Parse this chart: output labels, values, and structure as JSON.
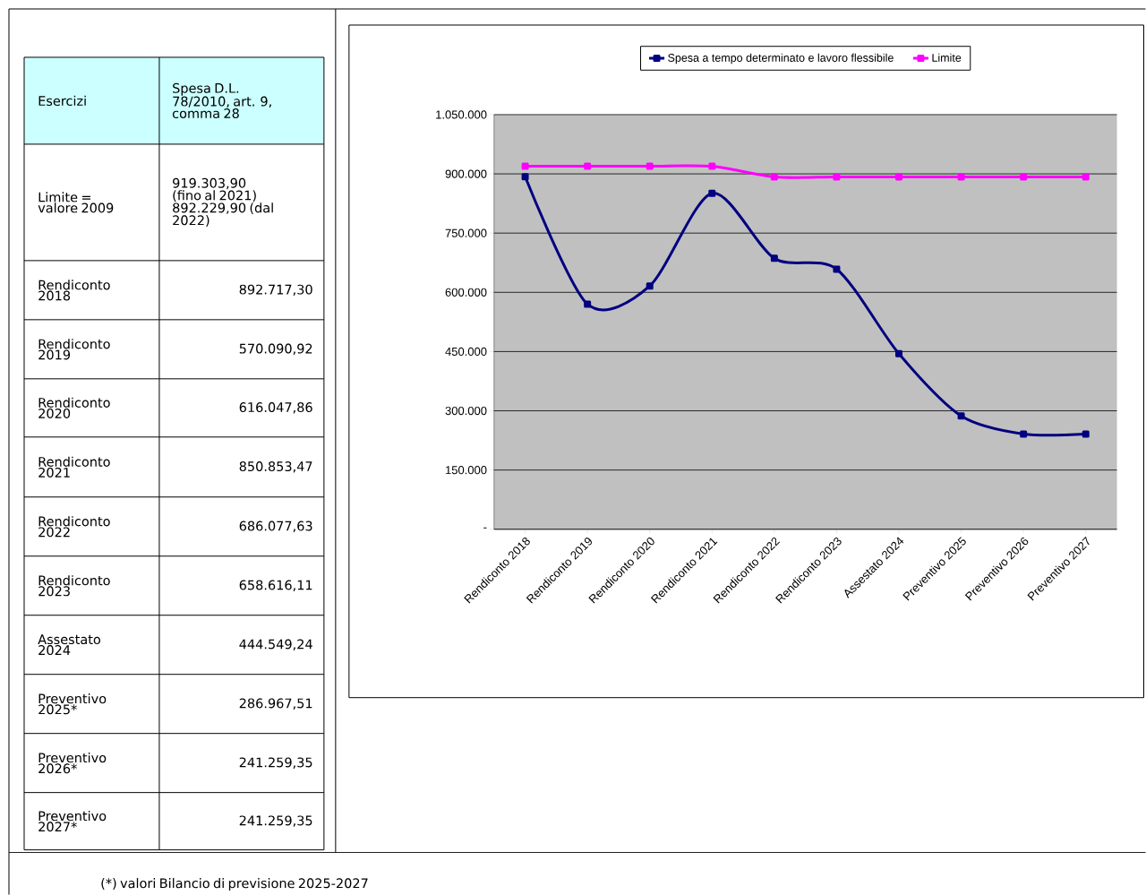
{
  "chart_data": {
    "type": "line",
    "categories": [
      "Rendiconto 2018",
      "Rendiconto 2019",
      "Rendiconto 2020",
      "Rendiconto 2021",
      "Rendiconto 2022",
      "Rendiconto 2023",
      "Assestato 2024",
      "Preventivo 2025",
      "Preventivo 2026",
      "Preventivo 2027"
    ],
    "series": [
      {
        "name": "Spesa a tempo determinato e lavoro flessibile",
        "color": "#000080",
        "values": [
          892717.3,
          570090.92,
          616047.86,
          850853.47,
          686077.63,
          658616.11,
          444549.24,
          286967.51,
          241259.35,
          241259.35
        ]
      },
      {
        "name": "Limite",
        "color": "#ff00ff",
        "values": [
          919303.9,
          919303.9,
          919303.9,
          919303.9,
          892229.9,
          892229.9,
          892229.9,
          892229.9,
          892229.9,
          892229.9
        ]
      }
    ],
    "ylim": [
      0,
      1050000
    ],
    "yticks": [
      {
        "value": 0,
        "label": "-"
      },
      {
        "value": 150000,
        "label": "150.000"
      },
      {
        "value": 300000,
        "label": "300.000"
      },
      {
        "value": 450000,
        "label": "450.000"
      },
      {
        "value": 600000,
        "label": "600.000"
      },
      {
        "value": 750000,
        "label": "750.000"
      },
      {
        "value": 900000,
        "label": "900.000"
      },
      {
        "value": 1050000,
        "label": "1.050.000"
      }
    ],
    "grid": "y",
    "legend": "top",
    "marker": "square",
    "line_style": "solid",
    "annotations": [
      "Esercizi",
      "Spesa D.L. 78/2010, art. 9, comma 28",
      "Limite = valore 2009",
      "919.303,90 (fino al 2021) 892.229,90 (dal 2022)",
      "Rendiconto 2018",
      "Rendiconto 2019",
      "Rendiconto 2020",
      "Rendiconto 2021",
      "Rendiconto 2022",
      "Rendiconto 2023",
      "Assestato 2024",
      "Preventivo 2025*",
      "Preventivo 2026*",
      "Preventivo 2027*",
      "(*) valori Bilancio di previsione 2025-2027",
      "892.717,30",
      "570.090,92",
      "616.047,86",
      "850.853,47",
      "686.077,63",
      "658.616,11",
      "444.549,24",
      "286.967,51",
      "241.259,35",
      "241.259,35"
    ]
  }
}
